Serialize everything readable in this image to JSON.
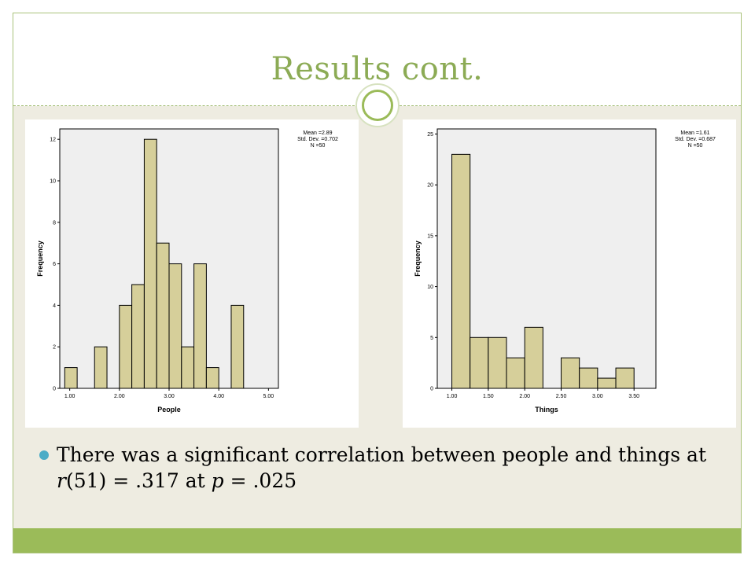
{
  "slide": {
    "title": "Results cont.",
    "bullet": {
      "prefix": "There was a significant correlation between people and things at ",
      "r_letter": "r",
      "middle": "(51) = .317 at ",
      "p_letter": "p",
      "suffix": " = .025"
    },
    "colors": {
      "title": "#8cab55",
      "content_bg": "#eeece1",
      "bottom_bar": "#9bbb59",
      "bullet": "#4bacc6",
      "bar_fill": "#d6cf9a",
      "plot_bg": "#efefef"
    }
  },
  "chart_data": [
    {
      "type": "bar",
      "subtype": "histogram",
      "xlabel": "People",
      "ylabel": "Frequency",
      "xlim": [
        0.8,
        5.2
      ],
      "ylim": [
        0,
        12.5
      ],
      "xticks": [
        "1.00",
        "2.00",
        "3.00",
        "4.00",
        "5.00"
      ],
      "xtick_values": [
        1,
        2,
        3,
        4,
        5
      ],
      "yticks": [
        "0",
        "2",
        "4",
        "6",
        "8",
        "10",
        "12"
      ],
      "ytick_values": [
        0,
        2,
        4,
        6,
        8,
        10,
        12
      ],
      "bins": [
        {
          "x0": 0.9,
          "x1": 1.15,
          "count": 1
        },
        {
          "x0": 1.5,
          "x1": 1.75,
          "count": 2
        },
        {
          "x0": 2.0,
          "x1": 2.25,
          "count": 4
        },
        {
          "x0": 2.25,
          "x1": 2.5,
          "count": 5
        },
        {
          "x0": 2.5,
          "x1": 2.75,
          "count": 12
        },
        {
          "x0": 2.75,
          "x1": 3.0,
          "count": 7
        },
        {
          "x0": 3.0,
          "x1": 3.25,
          "count": 6
        },
        {
          "x0": 3.25,
          "x1": 3.5,
          "count": 2
        },
        {
          "x0": 3.5,
          "x1": 3.75,
          "count": 6
        },
        {
          "x0": 3.75,
          "x1": 4.0,
          "count": 1
        },
        {
          "x0": 4.25,
          "x1": 4.5,
          "count": 4
        }
      ],
      "stats": [
        "Mean =2.89",
        "Std. Dev. =0.702",
        "N =50"
      ]
    },
    {
      "type": "bar",
      "subtype": "histogram",
      "xlabel": "Things",
      "ylabel": "Frequency",
      "xlim": [
        0.8,
        3.8
      ],
      "ylim": [
        0,
        25.5
      ],
      "xticks": [
        "1.00",
        "1.50",
        "2.00",
        "2.50",
        "3.00",
        "3.50"
      ],
      "xtick_values": [
        1.0,
        1.5,
        2.0,
        2.5,
        3.0,
        3.5
      ],
      "yticks": [
        "0",
        "5",
        "10",
        "15",
        "20",
        "25"
      ],
      "ytick_values": [
        0,
        5,
        10,
        15,
        20,
        25
      ],
      "bins": [
        {
          "x0": 1.0,
          "x1": 1.25,
          "count": 23
        },
        {
          "x0": 1.25,
          "x1": 1.5,
          "count": 5
        },
        {
          "x0": 1.5,
          "x1": 1.75,
          "count": 5
        },
        {
          "x0": 1.75,
          "x1": 2.0,
          "count": 3
        },
        {
          "x0": 2.0,
          "x1": 2.25,
          "count": 6
        },
        {
          "x0": 2.5,
          "x1": 2.75,
          "count": 3
        },
        {
          "x0": 2.75,
          "x1": 3.0,
          "count": 2
        },
        {
          "x0": 3.0,
          "x1": 3.25,
          "count": 1
        },
        {
          "x0": 3.25,
          "x1": 3.5,
          "count": 2
        }
      ],
      "stats": [
        "Mean =1.61",
        "Std. Dev. =0.687",
        "N =50"
      ]
    }
  ]
}
